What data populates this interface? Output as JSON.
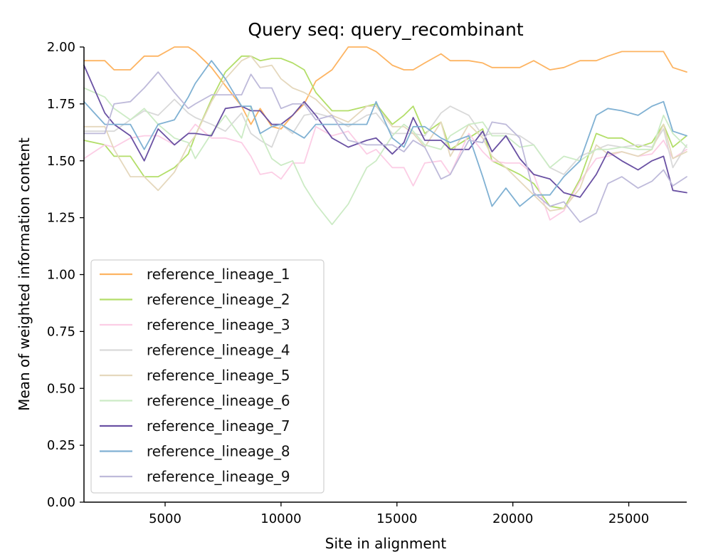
{
  "chart_data": {
    "type": "line",
    "title": "Query seq: query_recombinant",
    "xlabel": "Site in alignment",
    "ylabel": "Mean of weighted information content",
    "xlim": [
      1500,
      27500
    ],
    "ylim": [
      0.0,
      2.0
    ],
    "xticks": [
      5000,
      10000,
      15000,
      20000,
      25000
    ],
    "xtick_labels": [
      "5000",
      "10000",
      "15000",
      "20000",
      "25000"
    ],
    "yticks": [
      0.0,
      0.25,
      0.5,
      0.75,
      1.0,
      1.25,
      1.5,
      1.75,
      2.0
    ],
    "ytick_labels": [
      "0.00",
      "0.25",
      "0.50",
      "0.75",
      "1.00",
      "1.25",
      "1.50",
      "1.75",
      "2.00"
    ],
    "grid": false,
    "legend_position": "lower-left",
    "x": [
      1500,
      2400,
      2800,
      3500,
      4100,
      4700,
      5400,
      6000,
      6300,
      7000,
      7600,
      8300,
      8700,
      9100,
      9600,
      10000,
      10500,
      11000,
      11500,
      12200,
      12900,
      13700,
      14100,
      14800,
      15300,
      15700,
      16200,
      16900,
      17300,
      18100,
      18700,
      19100,
      19700,
      20300,
      20900,
      21600,
      22200,
      22900,
      23600,
      24100,
      24700,
      25400,
      26000,
      26500,
      26900,
      27500
    ],
    "series": [
      {
        "name": "reference_lineage_1",
        "color": "#fdb462",
        "values": [
          1.94,
          1.94,
          1.9,
          1.9,
          1.96,
          1.96,
          2.0,
          2.0,
          1.98,
          1.91,
          1.83,
          1.74,
          1.66,
          1.73,
          1.65,
          1.64,
          1.7,
          1.75,
          1.85,
          1.9,
          2.0,
          2.0,
          1.98,
          1.92,
          1.9,
          1.9,
          1.93,
          1.97,
          1.94,
          1.94,
          1.93,
          1.91,
          1.91,
          1.91,
          1.94,
          1.9,
          1.91,
          1.94,
          1.94,
          1.96,
          1.98,
          1.98,
          1.98,
          1.98,
          1.91,
          1.89
        ]
      },
      {
        "name": "reference_lineage_2",
        "color": "#b3de69",
        "values": [
          1.59,
          1.57,
          1.52,
          1.52,
          1.43,
          1.43,
          1.47,
          1.53,
          1.61,
          1.77,
          1.89,
          1.96,
          1.96,
          1.94,
          1.95,
          1.95,
          1.93,
          1.9,
          1.8,
          1.72,
          1.72,
          1.74,
          1.75,
          1.66,
          1.7,
          1.74,
          1.62,
          1.67,
          1.55,
          1.6,
          1.64,
          1.5,
          1.47,
          1.44,
          1.4,
          1.3,
          1.29,
          1.42,
          1.62,
          1.6,
          1.6,
          1.56,
          1.58,
          1.66,
          1.56,
          1.61
        ]
      },
      {
        "name": "reference_lineage_3",
        "color": "#fccde5",
        "values": [
          1.51,
          1.57,
          1.56,
          1.6,
          1.61,
          1.61,
          1.57,
          1.62,
          1.66,
          1.6,
          1.6,
          1.58,
          1.52,
          1.44,
          1.45,
          1.42,
          1.49,
          1.49,
          1.65,
          1.61,
          1.63,
          1.53,
          1.55,
          1.47,
          1.47,
          1.39,
          1.49,
          1.5,
          1.44,
          1.62,
          1.54,
          1.5,
          1.49,
          1.49,
          1.44,
          1.24,
          1.28,
          1.41,
          1.51,
          1.52,
          1.54,
          1.52,
          1.53,
          1.59,
          1.51,
          1.55
        ]
      },
      {
        "name": "reference_lineage_4",
        "color": "#d9d9d9",
        "values": [
          1.63,
          1.63,
          1.63,
          1.68,
          1.72,
          1.7,
          1.77,
          1.71,
          1.69,
          1.66,
          1.63,
          1.71,
          1.62,
          1.59,
          1.56,
          1.66,
          1.62,
          1.7,
          1.71,
          1.69,
          1.65,
          1.7,
          1.71,
          1.62,
          1.62,
          1.62,
          1.61,
          1.71,
          1.74,
          1.7,
          1.61,
          1.62,
          1.62,
          1.61,
          1.57,
          1.47,
          1.44,
          1.52,
          1.55,
          1.57,
          1.56,
          1.57,
          1.56,
          1.64,
          1.47,
          1.57
        ]
      },
      {
        "name": "reference_lineage_5",
        "color": "#e5d8bd",
        "values": [
          1.65,
          1.65,
          1.55,
          1.43,
          1.43,
          1.37,
          1.45,
          1.57,
          1.61,
          1.76,
          1.86,
          1.94,
          1.96,
          1.91,
          1.92,
          1.86,
          1.82,
          1.8,
          1.77,
          1.7,
          1.67,
          1.74,
          1.74,
          1.65,
          1.65,
          1.62,
          1.56,
          1.67,
          1.52,
          1.66,
          1.6,
          1.52,
          1.47,
          1.41,
          1.35,
          1.28,
          1.29,
          1.38,
          1.57,
          1.53,
          1.54,
          1.52,
          1.55,
          1.66,
          1.51,
          1.54
        ]
      },
      {
        "name": "reference_lineage_6",
        "color": "#ccebc5",
        "values": [
          1.82,
          1.78,
          1.73,
          1.68,
          1.73,
          1.66,
          1.6,
          1.58,
          1.51,
          1.62,
          1.7,
          1.6,
          1.74,
          1.62,
          1.51,
          1.48,
          1.5,
          1.39,
          1.31,
          1.22,
          1.31,
          1.47,
          1.5,
          1.61,
          1.66,
          1.63,
          1.57,
          1.55,
          1.61,
          1.66,
          1.67,
          1.61,
          1.61,
          1.56,
          1.57,
          1.47,
          1.52,
          1.5,
          1.55,
          1.55,
          1.56,
          1.55,
          1.55,
          1.7,
          1.62,
          1.56
        ]
      },
      {
        "name": "reference_lineage_7",
        "color": "#6a51a3",
        "values": [
          1.92,
          1.71,
          1.66,
          1.61,
          1.5,
          1.64,
          1.57,
          1.62,
          1.62,
          1.61,
          1.73,
          1.74,
          1.72,
          1.72,
          1.66,
          1.66,
          1.7,
          1.76,
          1.7,
          1.6,
          1.56,
          1.59,
          1.6,
          1.53,
          1.58,
          1.69,
          1.59,
          1.59,
          1.55,
          1.55,
          1.63,
          1.54,
          1.61,
          1.51,
          1.44,
          1.42,
          1.36,
          1.34,
          1.44,
          1.54,
          1.5,
          1.46,
          1.5,
          1.52,
          1.37,
          1.36
        ]
      },
      {
        "name": "reference_lineage_8",
        "color": "#80b1d3",
        "values": [
          1.76,
          1.66,
          1.66,
          1.66,
          1.55,
          1.66,
          1.68,
          1.78,
          1.84,
          1.94,
          1.86,
          1.74,
          1.74,
          1.62,
          1.65,
          1.66,
          1.63,
          1.6,
          1.66,
          1.66,
          1.66,
          1.66,
          1.76,
          1.6,
          1.56,
          1.65,
          1.65,
          1.6,
          1.58,
          1.61,
          1.43,
          1.3,
          1.38,
          1.3,
          1.35,
          1.35,
          1.43,
          1.5,
          1.7,
          1.73,
          1.72,
          1.7,
          1.74,
          1.76,
          1.63,
          1.61
        ]
      },
      {
        "name": "reference_lineage_9",
        "color": "#bebada",
        "values": [
          1.62,
          1.62,
          1.75,
          1.76,
          1.82,
          1.89,
          1.8,
          1.73,
          1.75,
          1.79,
          1.79,
          1.79,
          1.88,
          1.82,
          1.82,
          1.73,
          1.75,
          1.75,
          1.68,
          1.7,
          1.59,
          1.57,
          1.57,
          1.57,
          1.54,
          1.59,
          1.56,
          1.42,
          1.44,
          1.59,
          1.58,
          1.67,
          1.66,
          1.6,
          1.36,
          1.3,
          1.32,
          1.23,
          1.27,
          1.4,
          1.43,
          1.38,
          1.41,
          1.46,
          1.39,
          1.43
        ]
      }
    ]
  }
}
